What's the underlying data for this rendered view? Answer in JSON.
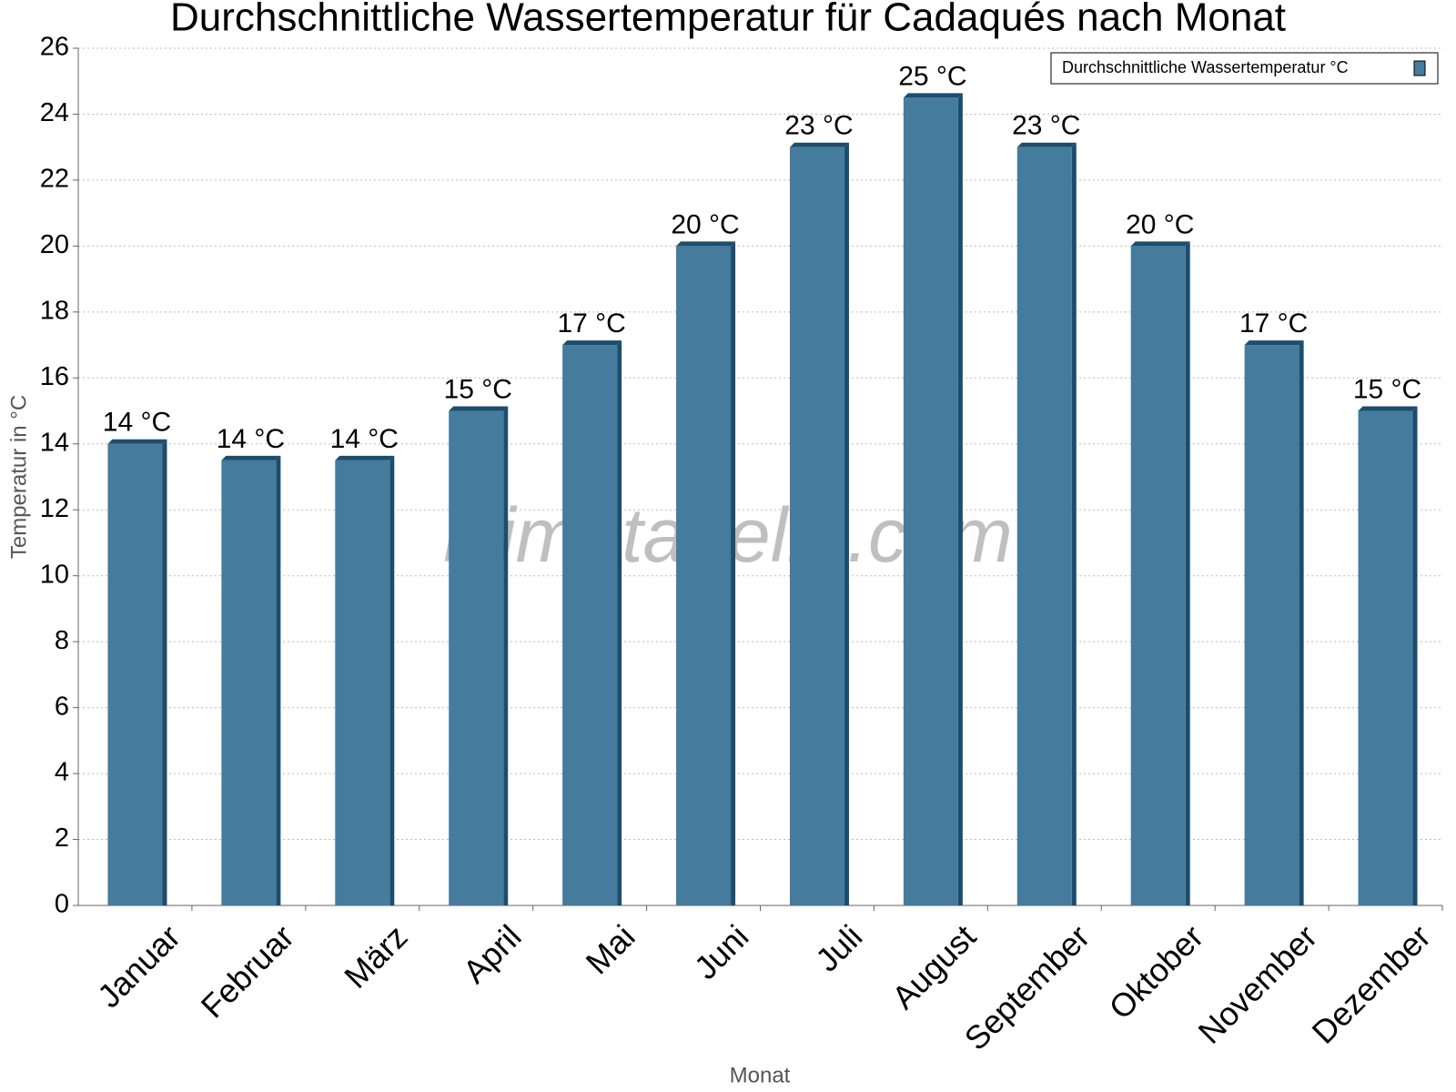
{
  "chart_data": {
    "type": "bar",
    "title": "Durchschnittliche Wassertemperatur für Cadaqués nach Monat",
    "x_label": "Monat",
    "y_label": "Temperatur in °C",
    "watermark": "klimatabelle.com",
    "categories": [
      "Januar",
      "Februar",
      "März",
      "April",
      "Mai",
      "Juni",
      "Juli",
      "August",
      "September",
      "Oktober",
      "November",
      "Dezember"
    ],
    "series": [
      {
        "name": "Durchschnittliche Wassertemperatur °C",
        "color": "#457b9d",
        "values": [
          14,
          13.5,
          13.5,
          15,
          17,
          20,
          23,
          24.5,
          23,
          20,
          17,
          15
        ],
        "value_labels": [
          "14 °C",
          "14 °C",
          "14 °C",
          "15 °C",
          "17 °C",
          "20 °C",
          "23 °C",
          "25 °C",
          "23 °C",
          "20 °C",
          "17 °C",
          "15 °C"
        ]
      }
    ],
    "ylim": [
      0,
      26
    ],
    "yticks": [
      0,
      2,
      4,
      6,
      8,
      10,
      12,
      14,
      16,
      18,
      20,
      22,
      24,
      26
    ],
    "grid": true,
    "legend": "top-right"
  }
}
